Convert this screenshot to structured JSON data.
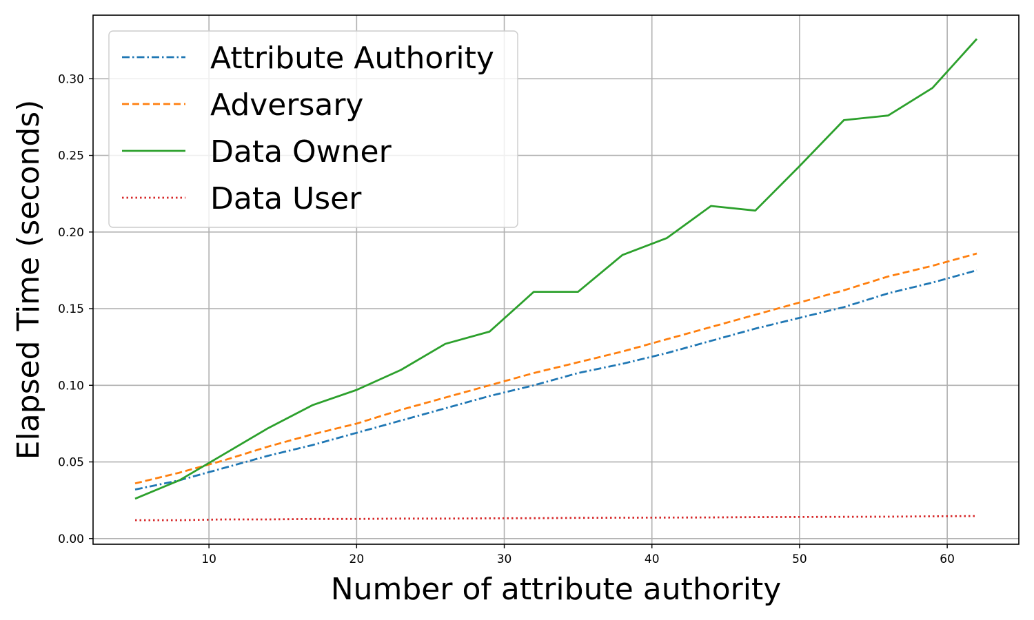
{
  "chart_data": {
    "type": "line",
    "title": "",
    "xlabel": "Number of attribute authority",
    "ylabel": "Elapsed Time (seconds)",
    "xlim": [
      2.15,
      64.85
    ],
    "ylim": [
      -0.0037,
      0.3415
    ],
    "xticks": [
      10,
      20,
      30,
      40,
      50,
      60
    ],
    "xtick_labels": [
      "10",
      "20",
      "30",
      "40",
      "50",
      "60"
    ],
    "yticks": [
      0.0,
      0.05,
      0.1,
      0.15,
      0.2,
      0.25,
      0.3
    ],
    "ytick_labels": [
      "0.00",
      "0.05",
      "0.10",
      "0.15",
      "0.20",
      "0.25",
      "0.30"
    ],
    "grid": true,
    "legend_position": "top-left",
    "x": [
      5,
      8,
      11,
      14,
      17,
      20,
      23,
      26,
      29,
      32,
      35,
      38,
      41,
      44,
      47,
      50,
      53,
      56,
      59,
      62
    ],
    "series": [
      {
        "name": "Attribute Authority",
        "color": "#1f77b4",
        "style": "dashdot",
        "values": [
          0.032,
          0.038,
          0.046,
          0.054,
          0.061,
          0.069,
          0.077,
          0.085,
          0.093,
          0.1,
          0.108,
          0.114,
          0.121,
          0.129,
          0.137,
          0.144,
          0.151,
          0.16,
          0.167,
          0.175
        ]
      },
      {
        "name": "Adversary",
        "color": "#ff7f0e",
        "style": "dashed",
        "values": [
          0.036,
          0.043,
          0.051,
          0.06,
          0.068,
          0.075,
          0.084,
          0.092,
          0.1,
          0.108,
          0.115,
          0.122,
          0.13,
          0.138,
          0.146,
          0.154,
          0.162,
          0.171,
          0.178,
          0.186
        ]
      },
      {
        "name": "Data Owner",
        "color": "#2ca02c",
        "style": "solid",
        "values": [
          0.026,
          0.038,
          0.055,
          0.072,
          0.087,
          0.097,
          0.11,
          0.127,
          0.135,
          0.161,
          0.161,
          0.185,
          0.196,
          0.217,
          0.214,
          0.243,
          0.273,
          0.276,
          0.294,
          0.326
        ]
      },
      {
        "name": "Data User",
        "color": "#d62728",
        "style": "dotted",
        "values": [
          0.012,
          0.012,
          0.0125,
          0.0125,
          0.0128,
          0.0128,
          0.013,
          0.013,
          0.0132,
          0.0133,
          0.0135,
          0.0136,
          0.0137,
          0.0138,
          0.014,
          0.0141,
          0.0142,
          0.0143,
          0.0145,
          0.0147
        ]
      }
    ]
  }
}
